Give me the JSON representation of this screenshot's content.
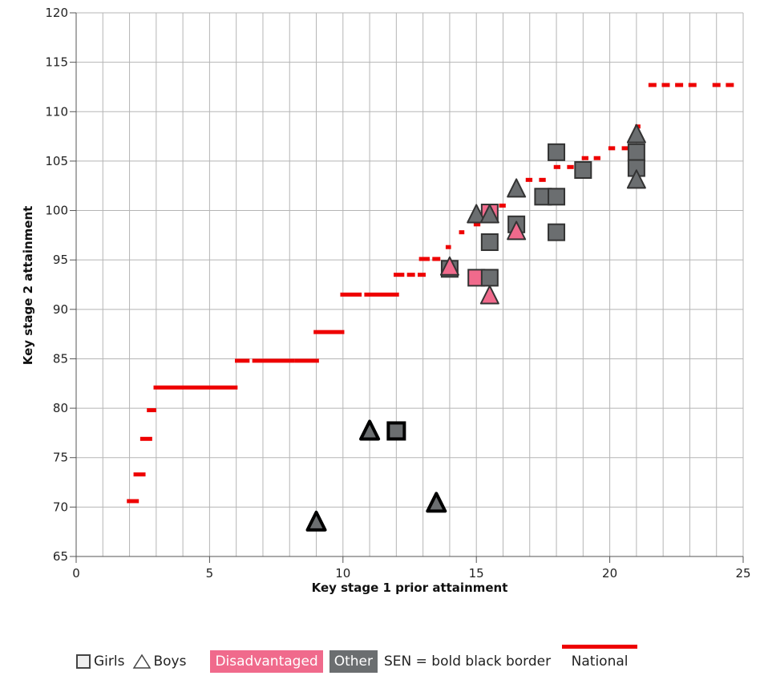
{
  "chart_data": {
    "type": "scatter",
    "xlabel": "Key stage 1 prior attainment",
    "ylabel": "Key stage 2 attainment",
    "xlim": [
      0,
      25
    ],
    "ylim": [
      65,
      120
    ],
    "x_ticks": [
      "0",
      "5",
      "10",
      "15",
      "20",
      "25"
    ],
    "y_ticks": [
      "65",
      "70",
      "75",
      "80",
      "85",
      "90",
      "95",
      "100",
      "105",
      "110",
      "115",
      "120"
    ],
    "grid": true,
    "colors": {
      "national": "#ee0000",
      "disadvantaged": "#f06a8c",
      "other": "#6b6e70",
      "grid": "#b5b5b5"
    },
    "national": [
      {
        "x1": 1.9,
        "x2": 2.35,
        "y": 70.6
      },
      {
        "x1": 2.15,
        "x2": 2.6,
        "y": 73.3
      },
      {
        "x1": 2.4,
        "x2": 2.85,
        "y": 76.9
      },
      {
        "x1": 2.65,
        "x2": 3.0,
        "y": 79.8
      },
      {
        "x1": 2.9,
        "x2": 6.05,
        "y": 82.1
      },
      {
        "x1": 5.95,
        "x2": 6.5,
        "y": 84.8
      },
      {
        "x1": 6.6,
        "x2": 8.2,
        "y": 84.8
      },
      {
        "x1": 8.2,
        "x2": 9.1,
        "y": 84.8
      },
      {
        "x1": 8.9,
        "x2": 10.05,
        "y": 87.7
      },
      {
        "x1": 9.9,
        "x2": 10.7,
        "y": 91.5
      },
      {
        "x1": 10.8,
        "x2": 12.1,
        "y": 91.5
      },
      {
        "x1": 11.9,
        "x2": 12.3,
        "y": 93.5
      },
      {
        "x1": 12.4,
        "x2": 12.7,
        "y": 93.5
      },
      {
        "x1": 12.8,
        "x2": 13.1,
        "y": 93.5
      },
      {
        "x1": 12.85,
        "x2": 13.25,
        "y": 95.1
      },
      {
        "x1": 13.35,
        "x2": 13.65,
        "y": 95.1
      },
      {
        "x1": 13.85,
        "x2": 14.05,
        "y": 96.3
      },
      {
        "x1": 14.35,
        "x2": 14.55,
        "y": 97.8
      },
      {
        "x1": 14.9,
        "x2": 15.15,
        "y": 98.6
      },
      {
        "x1": 15.35,
        "x2": 15.6,
        "y": 100.2
      },
      {
        "x1": 15.85,
        "x2": 16.1,
        "y": 100.5
      },
      {
        "x1": 16.85,
        "x2": 17.1,
        "y": 103.1
      },
      {
        "x1": 17.35,
        "x2": 17.6,
        "y": 103.1
      },
      {
        "x1": 17.9,
        "x2": 18.15,
        "y": 104.4
      },
      {
        "x1": 18.4,
        "x2": 18.65,
        "y": 104.4
      },
      {
        "x1": 18.95,
        "x2": 19.2,
        "y": 105.3
      },
      {
        "x1": 19.4,
        "x2": 19.65,
        "y": 105.3
      },
      {
        "x1": 19.95,
        "x2": 20.2,
        "y": 106.3
      },
      {
        "x1": 20.45,
        "x2": 20.7,
        "y": 106.3
      },
      {
        "x1": 20.95,
        "x2": 21.15,
        "y": 108.5
      },
      {
        "x1": 21.45,
        "x2": 21.75,
        "y": 112.7
      },
      {
        "x1": 21.95,
        "x2": 22.25,
        "y": 112.7
      },
      {
        "x1": 22.45,
        "x2": 22.75,
        "y": 112.7
      },
      {
        "x1": 22.95,
        "x2": 23.25,
        "y": 112.7
      },
      {
        "x1": 23.85,
        "x2": 24.15,
        "y": 112.7
      },
      {
        "x1": 24.35,
        "x2": 24.65,
        "y": 112.7
      }
    ],
    "points": [
      {
        "shape": "square",
        "group": "other",
        "sen": false,
        "x": 18.0,
        "y": 105.9
      },
      {
        "shape": "square",
        "group": "other",
        "sen": false,
        "x": 21.0,
        "y": 105.9
      },
      {
        "shape": "square",
        "group": "other",
        "sen": false,
        "x": 21.0,
        "y": 104.3
      },
      {
        "shape": "square",
        "group": "other",
        "sen": false,
        "x": 19.0,
        "y": 104.1
      },
      {
        "shape": "square",
        "group": "other",
        "sen": false,
        "x": 17.5,
        "y": 101.4
      },
      {
        "shape": "square",
        "group": "other",
        "sen": false,
        "x": 18.0,
        "y": 101.4
      },
      {
        "shape": "square",
        "group": "disadvantaged",
        "sen": false,
        "x": 15.5,
        "y": 99.8
      },
      {
        "shape": "square",
        "group": "other",
        "sen": false,
        "x": 16.5,
        "y": 98.6
      },
      {
        "shape": "square",
        "group": "other",
        "sen": false,
        "x": 18.0,
        "y": 97.8
      },
      {
        "shape": "square",
        "group": "other",
        "sen": false,
        "x": 15.5,
        "y": 96.8
      },
      {
        "shape": "square",
        "group": "other",
        "sen": false,
        "x": 14.0,
        "y": 94.1
      },
      {
        "shape": "square",
        "group": "disadvantaged",
        "sen": false,
        "x": 15.0,
        "y": 93.2
      },
      {
        "shape": "square",
        "group": "other",
        "sen": false,
        "x": 15.5,
        "y": 93.2
      },
      {
        "shape": "square",
        "group": "other",
        "sen": true,
        "x": 12.0,
        "y": 77.7
      },
      {
        "shape": "triangle",
        "group": "other",
        "sen": false,
        "x": 21.0,
        "y": 107.7
      },
      {
        "shape": "triangle",
        "group": "other",
        "sen": false,
        "x": 21.0,
        "y": 103.1
      },
      {
        "shape": "triangle",
        "group": "other",
        "sen": false,
        "x": 16.5,
        "y": 102.2
      },
      {
        "shape": "triangle",
        "group": "other",
        "sen": false,
        "x": 15.0,
        "y": 99.6
      },
      {
        "shape": "triangle",
        "group": "other",
        "sen": false,
        "x": 15.5,
        "y": 99.6
      },
      {
        "shape": "triangle",
        "group": "disadvantaged",
        "sen": false,
        "x": 16.5,
        "y": 97.9
      },
      {
        "shape": "triangle",
        "group": "disadvantaged",
        "sen": false,
        "x": 14.0,
        "y": 94.3
      },
      {
        "shape": "triangle",
        "group": "disadvantaged",
        "sen": false,
        "x": 15.5,
        "y": 91.4
      },
      {
        "shape": "triangle",
        "group": "other",
        "sen": true,
        "x": 11.0,
        "y": 77.7
      },
      {
        "shape": "triangle",
        "group": "other",
        "sen": true,
        "x": 13.5,
        "y": 70.4
      },
      {
        "shape": "triangle",
        "group": "other",
        "sen": true,
        "x": 9.0,
        "y": 68.5
      }
    ]
  },
  "legend": {
    "girls": "Girls",
    "boys": "Boys",
    "disadvantaged": "Disadvantaged",
    "other": "Other",
    "sen_note": "SEN = bold black border",
    "national": "National"
  }
}
